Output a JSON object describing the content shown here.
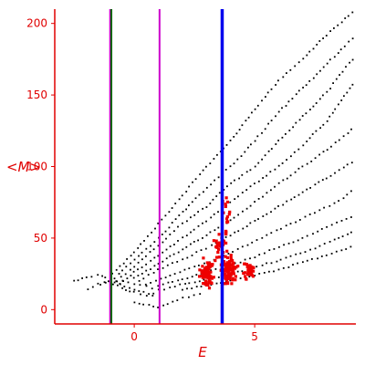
{
  "chart_data": {
    "type": "scatter",
    "xlabel": "E",
    "ylabel": "<M>",
    "xlim": [
      -3.3,
      9.2
    ],
    "ylim": [
      -10,
      210
    ],
    "xticks": [
      0,
      5
    ],
    "yticks": [
      0,
      50,
      100,
      150,
      200
    ],
    "axis_color": "#e00000",
    "vertical_lines": [
      {
        "x": -1.0,
        "color": "#cc00cc"
      },
      {
        "x": -0.95,
        "color": "#006600"
      },
      {
        "x": 1.05,
        "color": "#cc00cc"
      },
      {
        "x": 3.65,
        "color": "#0000ee"
      }
    ],
    "series": [
      {
        "color": "#000000",
        "curves": [
          [
            [
              -2.5,
              20
            ],
            [
              -2.0,
              23
            ],
            [
              -1.5,
              24
            ],
            [
              -1.2,
              22
            ],
            [
              -0.9,
              18
            ],
            [
              -0.5,
              15
            ],
            [
              0.0,
              12
            ],
            [
              0.5,
              10
            ],
            [
              1.0,
              10
            ]
          ],
          [
            [
              -1.9,
              14
            ],
            [
              -1.5,
              18
            ],
            [
              -1.0,
              20
            ],
            [
              -0.6,
              18
            ],
            [
              -0.2,
              15
            ],
            [
              0.2,
              13
            ],
            [
              0.6,
              11
            ],
            [
              1.0,
              11
            ]
          ],
          [
            [
              -1.4,
              17
            ],
            [
              -1.0,
              20
            ],
            [
              -0.5,
              20
            ],
            [
              0.0,
              18
            ],
            [
              0.5,
              16
            ],
            [
              1.0,
              14
            ],
            [
              1.5,
              14
            ]
          ],
          [
            [
              -0.9,
              25
            ],
            [
              0.0,
              40
            ],
            [
              1.0,
              60
            ],
            [
              2.0,
              80
            ],
            [
              3.0,
              100
            ],
            [
              4.0,
              118
            ],
            [
              5.0,
              140
            ],
            [
              6.0,
              160
            ],
            [
              7.0,
              175
            ],
            [
              8.0,
              192
            ],
            [
              9.2,
              210
            ]
          ],
          [
            [
              -0.8,
              22
            ],
            [
              0.0,
              35
            ],
            [
              1.0,
              50
            ],
            [
              2.0,
              68
            ],
            [
              3.0,
              85
            ],
            [
              4.0,
              100
            ],
            [
              5.0,
              118
            ],
            [
              6.0,
              138
            ],
            [
              7.0,
              155
            ],
            [
              8.0,
              172
            ],
            [
              9.2,
              192
            ]
          ],
          [
            [
              -0.7,
              20
            ],
            [
              0.0,
              30
            ],
            [
              1.0,
              45
            ],
            [
              2.0,
              60
            ],
            [
              3.0,
              72
            ],
            [
              4.0,
              88
            ],
            [
              5.0,
              100
            ],
            [
              6.0,
              118
            ],
            [
              7.0,
              135
            ],
            [
              8.0,
              152
            ],
            [
              9.2,
              178
            ]
          ],
          [
            [
              -0.6,
              18
            ],
            [
              0.0,
              26
            ],
            [
              1.0,
              38
            ],
            [
              2.0,
              50
            ],
            [
              3.0,
              62
            ],
            [
              4.0,
              75
            ],
            [
              5.0,
              88
            ],
            [
              6.0,
              100
            ],
            [
              7.0,
              115
            ],
            [
              8.0,
              132
            ],
            [
              9.2,
              160
            ]
          ],
          [
            [
              0.0,
              22
            ],
            [
              1.0,
              32
            ],
            [
              2.0,
              42
            ],
            [
              3.0,
              52
            ],
            [
              4.0,
              62
            ],
            [
              5.0,
              75
            ],
            [
              6.0,
              88
            ],
            [
              7.0,
              100
            ],
            [
              8.0,
              112
            ],
            [
              9.2,
              128
            ]
          ],
          [
            [
              0.2,
              20
            ],
            [
              1.0,
              28
            ],
            [
              2.0,
              35
            ],
            [
              3.0,
              43
            ],
            [
              4.0,
              52
            ],
            [
              5.0,
              62
            ],
            [
              6.0,
              72
            ],
            [
              7.0,
              82
            ],
            [
              8.0,
              92
            ],
            [
              9.2,
              105
            ]
          ],
          [
            [
              0.5,
              18
            ],
            [
              1.5,
              24
            ],
            [
              2.5,
              30
            ],
            [
              3.5,
              36
            ],
            [
              4.5,
              44
            ],
            [
              5.5,
              52
            ],
            [
              6.5,
              60
            ],
            [
              7.5,
              68
            ],
            [
              8.5,
              76
            ],
            [
              9.2,
              85
            ]
          ],
          [
            [
              1.0,
              17
            ],
            [
              2.0,
              21
            ],
            [
              3.0,
              26
            ],
            [
              4.0,
              31
            ],
            [
              5.0,
              37
            ],
            [
              6.0,
              44
            ],
            [
              7.0,
              50
            ],
            [
              8.0,
              58
            ],
            [
              9.2,
              66
            ]
          ],
          [
            [
              1.5,
              16
            ],
            [
              2.5,
              19
            ],
            [
              3.5,
              23
            ],
            [
              4.5,
              27
            ],
            [
              5.5,
              32
            ],
            [
              6.5,
              37
            ],
            [
              7.5,
              43
            ],
            [
              8.5,
              50
            ],
            [
              9.2,
              55
            ]
          ],
          [
            [
              2.0,
              14
            ],
            [
              3.0,
              17
            ],
            [
              4.0,
              20
            ],
            [
              5.0,
              24
            ],
            [
              6.0,
              28
            ],
            [
              7.0,
              33
            ],
            [
              8.0,
              38
            ],
            [
              9.2,
              45
            ]
          ],
          [
            [
              0.0,
              5
            ],
            [
              1.0,
              2
            ],
            [
              2.0,
              8
            ],
            [
              2.5,
              10
            ],
            [
              3.0,
              12
            ]
          ]
        ]
      },
      {
        "color": "#ee0000",
        "clusters": [
          {
            "center": [
              3.0,
              25
            ],
            "spread": [
              0.35,
              12
            ],
            "count": 90
          },
          {
            "center": [
              3.9,
              28
            ],
            "spread": [
              0.45,
              14
            ],
            "count": 90
          },
          {
            "center": [
              4.8,
              27
            ],
            "spread": [
              0.35,
              10
            ],
            "count": 35
          },
          {
            "center": [
              3.6,
              45
            ],
            "spread": [
              0.5,
              14
            ],
            "count": 30
          },
          {
            "center": [
              3.8,
              70
            ],
            "spread": [
              0.3,
              18
            ],
            "count": 12
          }
        ]
      }
    ]
  }
}
